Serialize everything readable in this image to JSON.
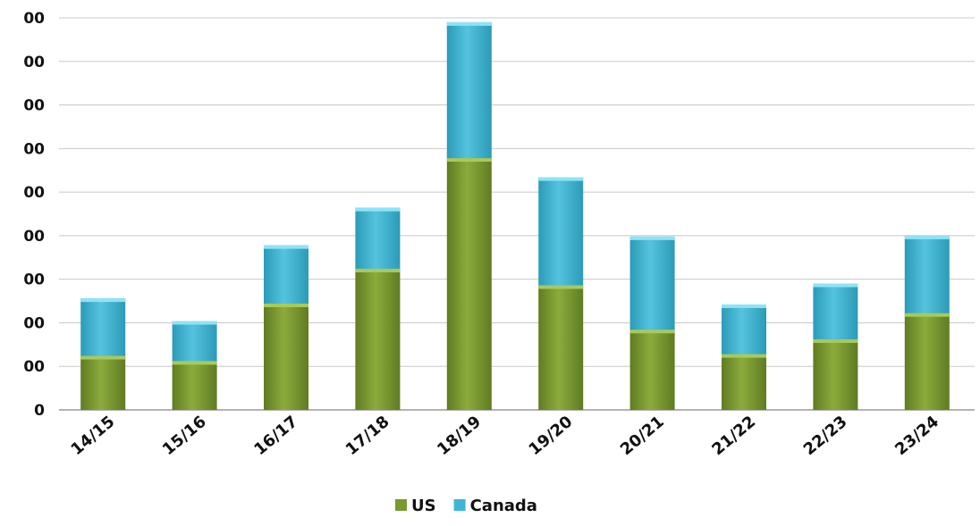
{
  "chart_data": {
    "type": "bar",
    "stacked": true,
    "categories": [
      "14/15",
      "15/16",
      "16/17",
      "17/18",
      "18/19",
      "19/20",
      "20/21",
      "21/22",
      "22/23",
      "23/24"
    ],
    "series": [
      {
        "name": "US",
        "color": "#7a9a30",
        "values": [
          124,
          112,
          244,
          324,
          578,
          286,
          184,
          128,
          162,
          222
        ]
      },
      {
        "name": "Canada",
        "color": "#3fb6d3",
        "values": [
          132,
          92,
          134,
          140,
          312,
          248,
          214,
          114,
          128,
          178
        ]
      }
    ],
    "y_tick_labels": [
      "0",
      "00",
      "00",
      "00",
      "00",
      "00",
      "00",
      "00",
      "00",
      "00"
    ],
    "ylim": [
      0,
      900
    ],
    "y_tick_step": 100,
    "grid": true,
    "legend_position": "bottom",
    "title": "",
    "xlabel": "",
    "ylabel": ""
  }
}
